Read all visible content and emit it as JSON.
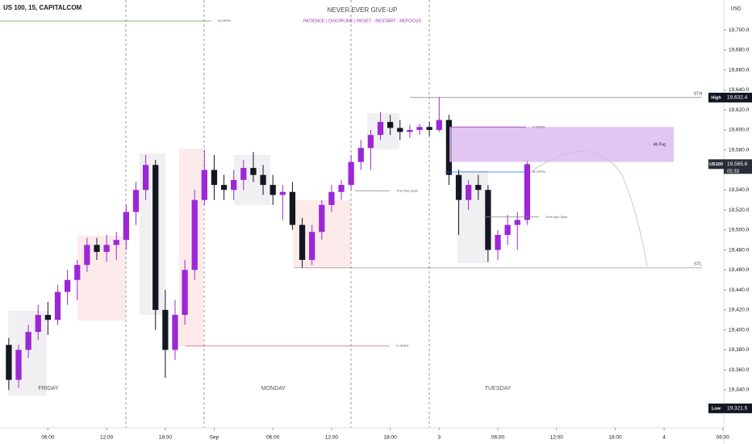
{
  "chart_data": {
    "type": "candlestick",
    "title": "US 100, 15, CAPITALCOM",
    "header": "NEVER EVER GIVE-UP",
    "subtitle": "PATIENCE  |  DISCIPLINE  |  RESET - RESTART - REFOCUS",
    "currency": "USD",
    "sessions": [
      "FRIDAY",
      "MONDAY",
      "TUESDAY"
    ],
    "x": [
      2,
      3,
      4,
      5,
      6,
      7,
      8,
      9,
      10,
      11,
      12,
      13,
      14,
      15,
      16,
      17,
      18,
      19,
      20,
      21,
      22,
      23,
      24,
      25,
      26,
      27,
      28,
      29,
      30,
      31,
      32,
      33,
      34,
      35,
      36,
      37,
      38,
      39,
      40,
      41,
      42,
      43,
      44,
      45,
      46,
      47,
      48,
      49,
      50,
      51,
      52,
      53,
      54,
      55
    ],
    "open": [
      19385,
      19350,
      19380,
      19398,
      19415,
      19410,
      19438,
      19450,
      19465,
      19485,
      19478,
      19485,
      19490,
      19518,
      19540,
      19565,
      19420,
      19380,
      19415,
      19460,
      19530,
      19560,
      19545,
      19540,
      19550,
      19562,
      19555,
      19545,
      19535,
      19538,
      19505,
      19470,
      19498,
      19525,
      19538,
      19545,
      19568,
      19582,
      19595,
      19608,
      19602,
      19598,
      19600,
      19603,
      19600,
      19610,
      19555,
      19530,
      19545,
      19540,
      19480,
      19495,
      19505,
      19510
    ],
    "high": [
      19392,
      19385,
      19405,
      19425,
      19428,
      19445,
      19460,
      19470,
      19492,
      19492,
      19495,
      19498,
      19525,
      19548,
      19575,
      19570,
      19440,
      19430,
      19470,
      19540,
      19580,
      19575,
      19555,
      19560,
      19570,
      19578,
      19565,
      19555,
      19545,
      19548,
      19512,
      19505,
      19530,
      19545,
      19550,
      19575,
      19590,
      19600,
      19618,
      19615,
      19610,
      19605,
      19606,
      19608,
      19633,
      19615,
      19560,
      19550,
      19555,
      19545,
      19500,
      19515,
      19518,
      19570
    ],
    "low": [
      19340,
      19342,
      19372,
      19390,
      19395,
      19405,
      19425,
      19430,
      19458,
      19470,
      19468,
      19470,
      19480,
      19505,
      19530,
      19400,
      19352,
      19370,
      19405,
      19450,
      19525,
      19530,
      19530,
      19530,
      19540,
      19548,
      19535,
      19525,
      19510,
      19500,
      19462,
      19465,
      19490,
      19518,
      19530,
      19540,
      19560,
      19560,
      19590,
      19595,
      19590,
      19592,
      19595,
      19594,
      19598,
      19545,
      19495,
      19520,
      19530,
      19468,
      19470,
      19485,
      19480,
      19505
    ],
    "close": [
      19350,
      19380,
      19398,
      19415,
      19410,
      19438,
      19450,
      19465,
      19485,
      19478,
      19485,
      19490,
      19518,
      19540,
      19565,
      19420,
      19380,
      19415,
      19460,
      19530,
      19560,
      19545,
      19540,
      19550,
      19562,
      19555,
      19545,
      19535,
      19538,
      19505,
      19470,
      19498,
      19525,
      19538,
      19545,
      19568,
      19582,
      19595,
      19608,
      19602,
      19598,
      19600,
      19603,
      19600,
      19610,
      19555,
      19530,
      19545,
      19540,
      19480,
      19495,
      19505,
      19510,
      19565.8
    ],
    "up_color": "#9c27d6",
    "down_color": "#131722",
    "xlim": [
      1.1,
      75.1
    ],
    "ylim": [
      19302,
      19730
    ],
    "xticks": [
      {
        "value": 6,
        "label": "06:00"
      },
      {
        "value": 12,
        "label": "12:00"
      },
      {
        "value": 18,
        "label": "18:00"
      },
      {
        "value": 23,
        "label": "Sep"
      },
      {
        "value": 29,
        "label": "06:00"
      },
      {
        "value": 35,
        "label": "12:00"
      },
      {
        "value": 41,
        "label": "18:00"
      },
      {
        "value": 46,
        "label": "3"
      },
      {
        "value": 52,
        "label": "06:00"
      },
      {
        "value": 58,
        "label": "12:00"
      },
      {
        "value": 64,
        "label": "18:00"
      },
      {
        "value": 69,
        "label": "4"
      },
      {
        "value": 75,
        "label": "06:00"
      }
    ],
    "yticks": [
      {
        "value": 19340,
        "label": "19,340.0"
      },
      {
        "value": 19360,
        "label": "19,360.0"
      },
      {
        "value": 19380,
        "label": "19,380.0"
      },
      {
        "value": 19400,
        "label": "19,400.0"
      },
      {
        "value": 19420,
        "label": "19,420.0"
      },
      {
        "value": 19440,
        "label": "19,440.0"
      },
      {
        "value": 19460,
        "label": "19,460.0"
      },
      {
        "value": 19480,
        "label": "19,480.0"
      },
      {
        "value": 19500,
        "label": "19,500.0"
      },
      {
        "value": 19520,
        "label": "19,520.0"
      },
      {
        "value": 19540,
        "label": "19,540.0"
      },
      {
        "value": 19560,
        "label": "19,560.0"
      },
      {
        "value": 19580,
        "label": "19,580.0"
      },
      {
        "value": 19600,
        "label": "19,600.0"
      },
      {
        "value": 19620,
        "label": "19,620.0"
      },
      {
        "value": 19640,
        "label": "19,640.0"
      },
      {
        "value": 19660,
        "label": "19,660.0"
      },
      {
        "value": 19680,
        "label": "19,680.0"
      },
      {
        "value": 19700,
        "label": "19,700.0"
      }
    ],
    "levels": [
      {
        "label": "STH",
        "value": 19632.4
      },
      {
        "label": "STL",
        "value": 19462
      }
    ],
    "fvg": {
      "label": "4h Fvg",
      "range": [
        19568,
        19603
      ]
    },
    "opens": [
      {
        "label": "W.OPEN",
        "value": 19709
      },
      {
        "label": "D.OPEN",
        "value": 19384
      },
      {
        "label": "D.OPEN",
        "value": 19603
      },
      {
        "label": "M.OPEN",
        "value": 19558
      },
      {
        "label": "True Day Open",
        "value": 19539
      },
      {
        "label": "True Day Open",
        "value": 19513
      }
    ],
    "high_tag": {
      "label": "High",
      "value": 19632.4,
      "value_label": "19,632.4"
    },
    "low_tag": {
      "label": "Low",
      "value": 19321.5,
      "value_label": "19,321.5"
    },
    "last_tag": {
      "label": "US100",
      "value": 19565.8,
      "value_label": "19,565.8",
      "countdown": "05:33"
    }
  }
}
